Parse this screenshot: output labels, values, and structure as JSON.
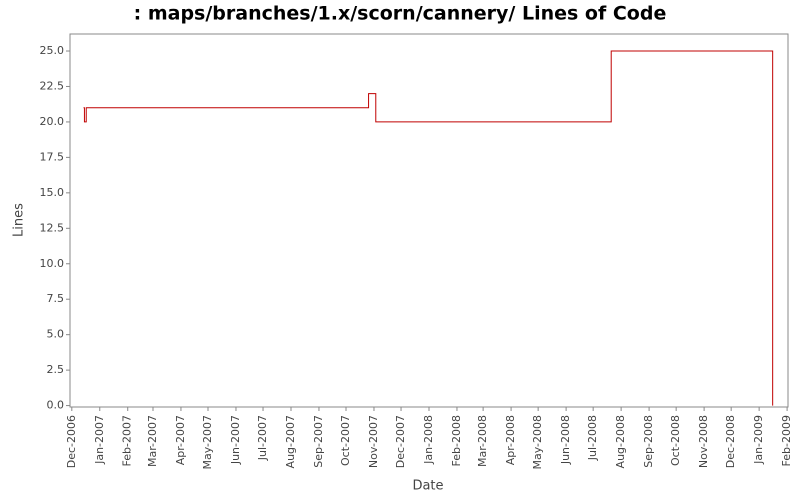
{
  "chart_data": {
    "type": "step-line",
    "title": ": maps/branches/1.x/scorn/cannery/ Lines of Code",
    "x_label": "Date",
    "y_label": "Lines",
    "x": [
      "2006-12-14",
      "2006-12-15",
      "2006-12-17",
      "2007-10-26",
      "2007-11-03",
      "2008-07-21",
      "2009-01-16"
    ],
    "series": [
      {
        "name": "Lines",
        "color": "#c00000",
        "values": [
          21,
          20,
          21,
          22,
          20,
          25,
          0
        ]
      }
    ],
    "xlim": [
      "2006-11-29",
      "2009-02-02"
    ],
    "xticks": [
      {
        "value": "2006-12-01",
        "label": "Dec-2006"
      },
      {
        "value": "2007-01-01",
        "label": "Jan-2007"
      },
      {
        "value": "2007-02-01",
        "label": "Feb-2007"
      },
      {
        "value": "2007-03-01",
        "label": "Mar-2007"
      },
      {
        "value": "2007-04-01",
        "label": "Apr-2007"
      },
      {
        "value": "2007-05-01",
        "label": "May-2007"
      },
      {
        "value": "2007-06-01",
        "label": "Jun-2007"
      },
      {
        "value": "2007-07-01",
        "label": "Jul-2007"
      },
      {
        "value": "2007-08-01",
        "label": "Aug-2007"
      },
      {
        "value": "2007-09-01",
        "label": "Sep-2007"
      },
      {
        "value": "2007-10-01",
        "label": "Oct-2007"
      },
      {
        "value": "2007-11-01",
        "label": "Nov-2007"
      },
      {
        "value": "2007-12-01",
        "label": "Dec-2007"
      },
      {
        "value": "2008-01-01",
        "label": "Jan-2008"
      },
      {
        "value": "2008-02-01",
        "label": "Feb-2008"
      },
      {
        "value": "2008-03-01",
        "label": "Mar-2008"
      },
      {
        "value": "2008-04-01",
        "label": "Apr-2008"
      },
      {
        "value": "2008-05-01",
        "label": "May-2008"
      },
      {
        "value": "2008-06-01",
        "label": "Jun-2008"
      },
      {
        "value": "2008-07-01",
        "label": "Jul-2008"
      },
      {
        "value": "2008-08-01",
        "label": "Aug-2008"
      },
      {
        "value": "2008-09-01",
        "label": "Sep-2008"
      },
      {
        "value": "2008-10-01",
        "label": "Oct-2008"
      },
      {
        "value": "2008-11-01",
        "label": "Nov-2008"
      },
      {
        "value": "2008-12-01",
        "label": "Dec-2008"
      },
      {
        "value": "2009-01-01",
        "label": "Jan-2009"
      },
      {
        "value": "2009-02-01",
        "label": "Feb-2009"
      }
    ],
    "ylim": [
      -0.1,
      26.2
    ],
    "yticks": [
      {
        "value": 0,
        "label": "0.0"
      },
      2.5,
      {
        "value": 5,
        "label": "5.0"
      },
      7.5,
      {
        "value": 10,
        "label": "10.0"
      },
      12.5,
      {
        "value": 15,
        "label": "15.0"
      },
      17.5,
      {
        "value": 20,
        "label": "20.0"
      },
      22.5,
      {
        "value": 25,
        "label": "25.0"
      }
    ],
    "grid": false
  }
}
